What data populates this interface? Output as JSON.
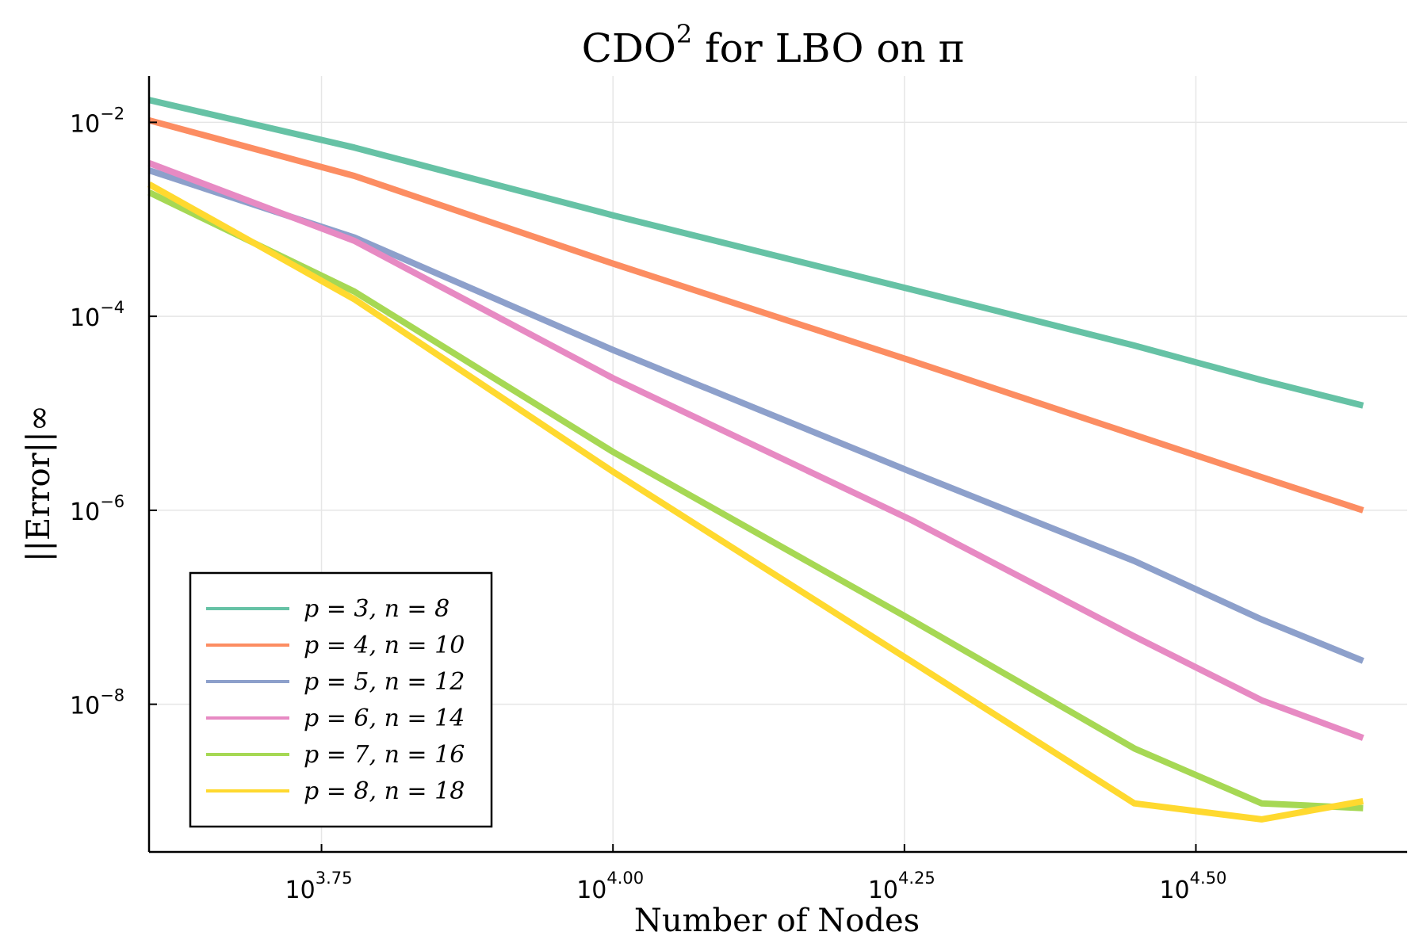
{
  "chart_data": {
    "type": "line",
    "title": {
      "main": "CDO",
      "sup": "2",
      "rest": " for LBO on π"
    },
    "xlabel": "Number of Nodes",
    "ylabel": "||Error||∞",
    "xscale": "log10",
    "yscale": "log10",
    "xlim": [
      4000,
      48000
    ],
    "ylim": [
      3e-10,
      0.03
    ],
    "x_ticks": [
      {
        "value": 5623.4,
        "base": "10",
        "exp": "3.75"
      },
      {
        "value": 10000,
        "base": "10",
        "exp": "4.00"
      },
      {
        "value": 17782.8,
        "base": "10",
        "exp": "4.25"
      },
      {
        "value": 31622.8,
        "base": "10",
        "exp": "4.50"
      }
    ],
    "y_ticks": [
      {
        "value": 0.01,
        "base": "10",
        "exp": "−2"
      },
      {
        "value": 0.0001,
        "base": "10",
        "exp": "−4"
      },
      {
        "value": 1e-06,
        "base": "10",
        "exp": "−6"
      },
      {
        "value": 1e-08,
        "base": "10",
        "exp": "−8"
      }
    ],
    "grid": true,
    "legend_position": "bottom-left",
    "series": [
      {
        "name": "p = 3, n = 8",
        "color": "#66c2a5",
        "x": [
          4000,
          6000,
          10000,
          18000,
          28000,
          36000,
          44000
        ],
        "y": [
          0.017,
          0.0055,
          0.0011,
          0.00019,
          5e-05,
          2.2e-05,
          1.2e-05
        ]
      },
      {
        "name": "p = 4, n = 10",
        "color": "#fc8d62",
        "x": [
          4000,
          6000,
          10000,
          18000,
          28000,
          36000,
          44000
        ],
        "y": [
          0.0105,
          0.0028,
          0.00035,
          3.5e-05,
          6e-06,
          2.2e-06,
          1e-06
        ]
      },
      {
        "name": "p = 5, n = 12",
        "color": "#8da0cb",
        "x": [
          4000,
          6000,
          10000,
          18000,
          28000,
          36000,
          44000
        ],
        "y": [
          0.0032,
          0.00065,
          4.5e-05,
          2.5e-06,
          3e-07,
          7.5e-08,
          2.8e-08
        ]
      },
      {
        "name": "p = 6, n = 14",
        "color": "#e78ac3",
        "x": [
          4000,
          6000,
          10000,
          18000,
          28000,
          36000,
          44000
        ],
        "y": [
          0.0038,
          0.0006,
          2.3e-05,
          8e-07,
          5e-08,
          1.1e-08,
          4.5e-09
        ]
      },
      {
        "name": "p = 7, n = 16",
        "color": "#a6d854",
        "x": [
          4000,
          6000,
          10000,
          18000,
          28000,
          36000,
          44000
        ],
        "y": [
          0.0019,
          0.00018,
          4e-06,
          7.5e-08,
          3.5e-09,
          9.5e-10,
          8.5e-10
        ]
      },
      {
        "name": "p = 8, n = 18",
        "color": "#ffd92f",
        "x": [
          4000,
          6000,
          10000,
          18000,
          28000,
          36000,
          44000
        ],
        "y": [
          0.0023,
          0.00015,
          2.5e-06,
          2.8e-08,
          9.5e-10,
          6.5e-10,
          1e-09
        ]
      }
    ]
  }
}
